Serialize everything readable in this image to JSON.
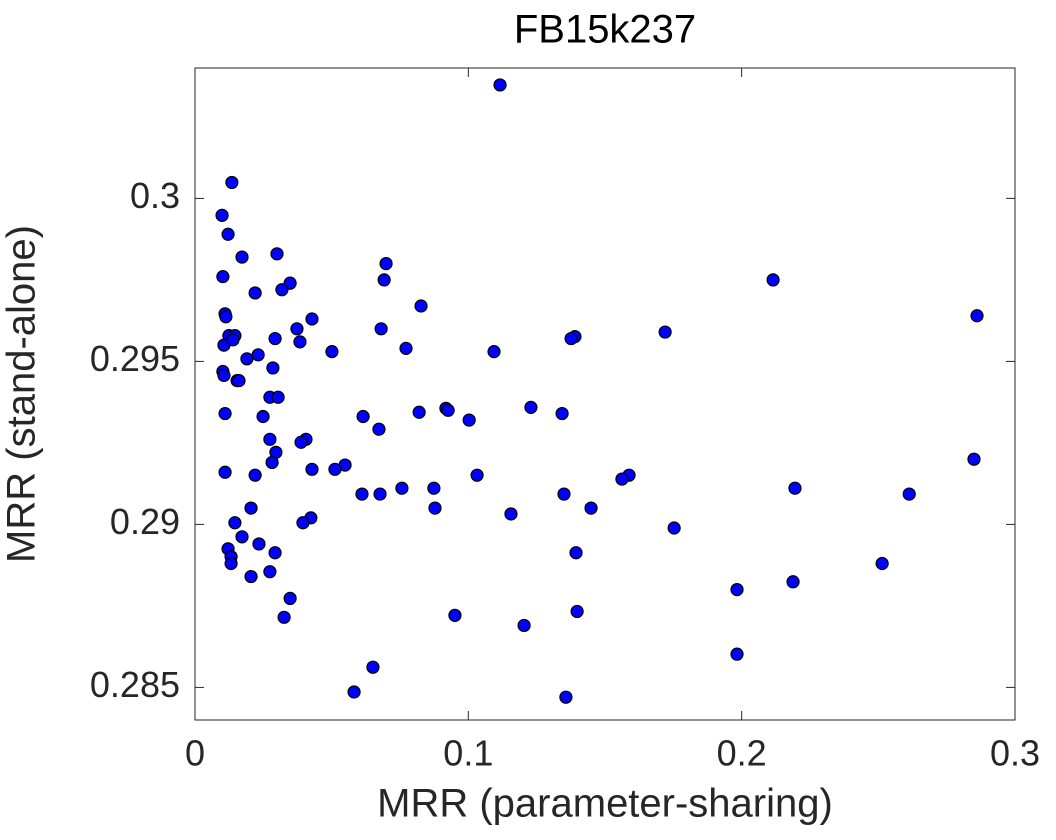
{
  "chart_data": {
    "type": "scatter",
    "title": "FB15k237",
    "x_label": "MRR (parameter-sharing)",
    "y_label": "MRR (stand-alone)",
    "color": "#0000ff",
    "xlim": [
      0,
      0.3
    ],
    "ylim": [
      0.284,
      0.304
    ],
    "xticks": [
      0,
      0.1,
      0.2,
      0.3
    ],
    "yticks": [
      0.285,
      0.29,
      0.295,
      0.3
    ],
    "grid": false,
    "x": [
      0.1116,
      0.0135,
      0.0099,
      0.0121,
      0.0172,
      0.03,
      0.0699,
      0.0102,
      0.0692,
      0.2115,
      0.0348,
      0.0318,
      0.022,
      0.0827,
      0.011,
      0.0113,
      0.2861,
      0.0428,
      0.0373,
      0.0681,
      0.172,
      0.0124,
      0.0146,
      0.0293,
      0.139,
      0.1376,
      0.0384,
      0.0106,
      0.0139,
      0.0772,
      0.0501,
      0.1094,
      0.0231,
      0.019,
      0.0285,
      0.0102,
      0.0106,
      0.0154,
      0.0161,
      0.0274,
      0.0304,
      0.0918,
      0.1229,
      0.0926,
      0.082,
      0.1343,
      0.011,
      0.0249,
      0.0615,
      0.1003,
      0.0673,
      0.0274,
      0.0406,
      0.0388,
      0.0296,
      0.0282,
      0.285,
      0.0549,
      0.0512,
      0.0428,
      0.011,
      0.022,
      0.1032,
      0.1588,
      0.1562,
      0.0757,
      0.0874,
      0.2195,
      0.0611,
      0.0677,
      0.135,
      0.2613,
      0.0205,
      0.0878,
      0.1449,
      0.1156,
      0.0424,
      0.0395,
      0.0146,
      0.1753,
      0.0172,
      0.0234,
      0.0121,
      0.0293,
      0.1394,
      0.0132,
      0.0132,
      0.2514,
      0.0274,
      0.0205,
      0.2188,
      0.1983,
      0.0348,
      0.1398,
      0.0951,
      0.0326,
      0.1204,
      0.1983,
      0.0651,
      0.0582,
      0.1357
    ],
    "values": [
      0.30348,
      0.30049,
      0.29948,
      0.2989,
      0.2982,
      0.2983,
      0.298,
      0.2976,
      0.2975,
      0.2975,
      0.2974,
      0.2972,
      0.2971,
      0.2967,
      0.29646,
      0.29637,
      0.2964,
      0.2963,
      0.296,
      0.296,
      0.2959,
      0.29579,
      0.29579,
      0.2957,
      0.29576,
      0.2957,
      0.2956,
      0.2955,
      0.29566,
      0.2954,
      0.2953,
      0.2953,
      0.2952,
      0.29508,
      0.2948,
      0.29469,
      0.29457,
      0.29441,
      0.29441,
      0.2939,
      0.2939,
      0.29356,
      0.29359,
      0.2935,
      0.29344,
      0.2934,
      0.2934,
      0.29331,
      0.29331,
      0.2932,
      0.29292,
      0.29261,
      0.29261,
      0.29252,
      0.29221,
      0.2919,
      0.292,
      0.29182,
      0.29169,
      0.29169,
      0.2916,
      0.29151,
      0.29151,
      0.29151,
      0.29139,
      0.29111,
      0.29111,
      0.29111,
      0.29093,
      0.29093,
      0.29093,
      0.29093,
      0.2905,
      0.2905,
      0.2905,
      0.29032,
      0.2902,
      0.29005,
      0.29005,
      0.28989,
      0.28962,
      0.2894,
      0.28925,
      0.28913,
      0.28913,
      0.28901,
      0.2888,
      0.2888,
      0.28855,
      0.2884,
      0.28824,
      0.288,
      0.28773,
      0.28733,
      0.28721,
      0.28715,
      0.2869,
      0.28602,
      0.28562,
      0.28486,
      0.2847
    ]
  }
}
